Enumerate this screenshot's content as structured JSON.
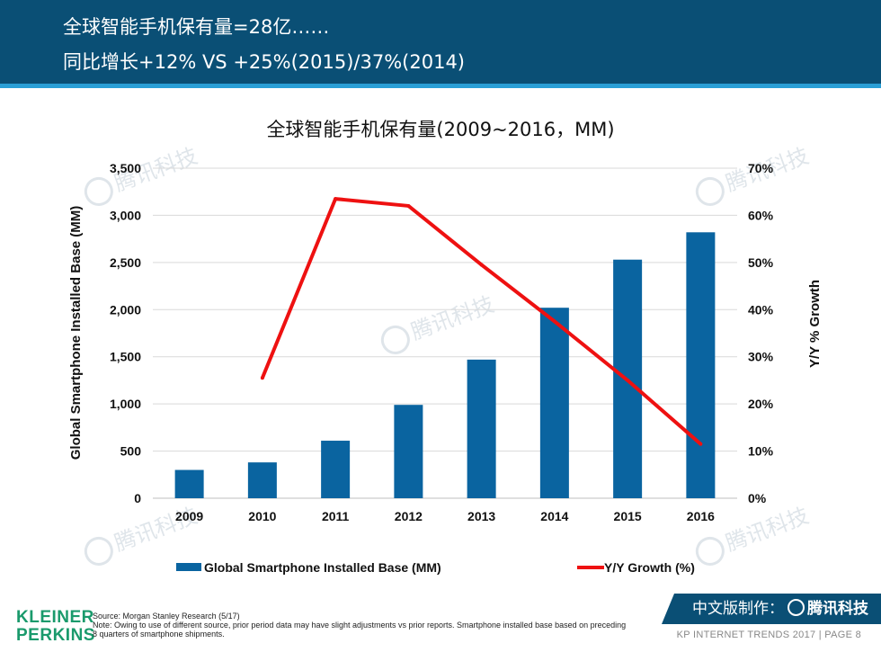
{
  "header": {
    "line1": "全球智能手机保有量=28亿……",
    "line2": "同比增长+12% VS +25%(2015)/37%(2014)"
  },
  "chart_data": {
    "type": "bar+line",
    "title": "全球智能手机保有量(2009~2016，MM)",
    "categories": [
      "2009",
      "2010",
      "2011",
      "2012",
      "2013",
      "2014",
      "2015",
      "2016"
    ],
    "series": [
      {
        "name": "Global Smartphone Installed Base (MM)",
        "type": "bar",
        "axis": "left",
        "values": [
          300,
          380,
          610,
          990,
          1470,
          2020,
          2530,
          2820
        ]
      },
      {
        "name": "Y/Y Growth (%)",
        "type": "line",
        "axis": "right",
        "values": [
          null,
          25.5,
          63.5,
          62,
          49.5,
          37.5,
          25,
          11.5
        ]
      }
    ],
    "ylabel_left": "Global Smartphone Installed Base (MM)",
    "ylabel_right": "Y/Y % Growth",
    "ylim_left": [
      0,
      3500
    ],
    "ylim_right": [
      0,
      70
    ],
    "yticks_left": [
      "0",
      "500",
      "1,000",
      "1,500",
      "2,000",
      "2,500",
      "3,000",
      "3,500"
    ],
    "yticks_right": [
      "0%",
      "10%",
      "20%",
      "30%",
      "40%",
      "50%",
      "60%",
      "70%"
    ],
    "colors": {
      "bar": "#0a64a0",
      "line": "#ee1111",
      "grid": "#d9d9d9"
    }
  },
  "legend": {
    "bar_label": "Global Smartphone Installed Base (MM)",
    "line_label": "Y/Y Growth (%)"
  },
  "watermark": "腾讯科技",
  "branding": {
    "kp_line1": "KLEINER",
    "kp_line2": "PERKINS",
    "badge_prefix": "中文版制作：",
    "badge_brand": "腾讯科技",
    "footer": "KP INTERNET TRENDS 2017   |   PAGE 8"
  },
  "source": {
    "line1": "Source: Morgan Stanley Research (5/17)",
    "line2": "Note: Owing to use of different source, prior period data may have slight adjustments vs prior reports. Smartphone installed base based on preceding 8 quarters of smartphone shipments."
  }
}
